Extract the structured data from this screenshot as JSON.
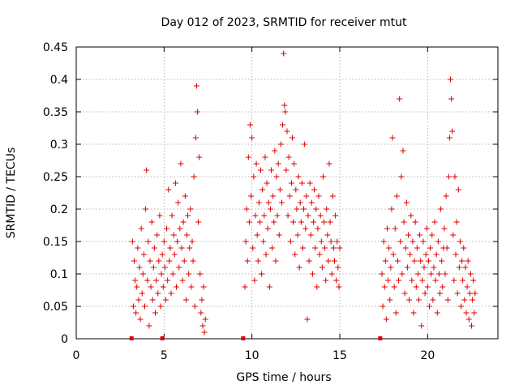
{
  "chart_data": {
    "type": "scatter",
    "title": "Day 012 of 2023, SRMTID for receiver mtut",
    "xlabel": "GPS time / hours",
    "ylabel": "SRMTID / TECUs",
    "xlim": [
      0,
      24
    ],
    "ylim": [
      0,
      0.45
    ],
    "xticks": [
      0,
      5,
      10,
      15,
      20
    ],
    "xtick_labels": [
      "0",
      "5",
      "10",
      "15",
      "20"
    ],
    "yticks": [
      0,
      0.05,
      0.1,
      0.15,
      0.2,
      0.25,
      0.3,
      0.35,
      0.4,
      0.45
    ],
    "ytick_labels": [
      "0",
      "0.05",
      "0.1",
      "0.15",
      "0.2",
      "0.25",
      "0.3",
      "0.35",
      "0.4",
      "0.45"
    ],
    "grid": true,
    "marker": "plus",
    "color": "#dd0000",
    "data_gaps_at_zero": [
      3.15,
      4.9,
      9.5,
      17.3
    ],
    "series": [
      {
        "name": "SRMTID",
        "points": [
          [
            3.2,
            0.15
          ],
          [
            3.25,
            0.05
          ],
          [
            3.3,
            0.12
          ],
          [
            3.35,
            0.09
          ],
          [
            3.4,
            0.04
          ],
          [
            3.45,
            0.08
          ],
          [
            3.5,
            0.14
          ],
          [
            3.55,
            0.06
          ],
          [
            3.6,
            0.11
          ],
          [
            3.65,
            0.03
          ],
          [
            3.7,
            0.17
          ],
          [
            3.75,
            0.07
          ],
          [
            3.8,
            0.1
          ],
          [
            3.85,
            0.13
          ],
          [
            3.9,
            0.05
          ],
          [
            3.95,
            0.2
          ],
          [
            4.0,
            0.26
          ],
          [
            4.05,
            0.09
          ],
          [
            4.1,
            0.15
          ],
          [
            4.15,
            0.02
          ],
          [
            4.2,
            0.12
          ],
          [
            4.25,
            0.08
          ],
          [
            4.3,
            0.18
          ],
          [
            4.35,
            0.06
          ],
          [
            4.4,
            0.11
          ],
          [
            4.45,
            0.14
          ],
          [
            4.5,
            0.04
          ],
          [
            4.55,
            0.09
          ],
          [
            4.6,
            0.16
          ],
          [
            4.65,
            0.07
          ],
          [
            4.7,
            0.12
          ],
          [
            4.75,
            0.19
          ],
          [
            4.8,
            0.05
          ],
          [
            4.85,
            0.1
          ],
          [
            4.9,
            0.13
          ],
          [
            4.95,
            0.08
          ],
          [
            5.0,
            0.15
          ],
          [
            5.05,
            0.11
          ],
          [
            5.1,
            0.06
          ],
          [
            5.15,
            0.17
          ],
          [
            5.2,
            0.09
          ],
          [
            5.25,
            0.23
          ],
          [
            5.3,
            0.12
          ],
          [
            5.35,
            0.14
          ],
          [
            5.4,
            0.07
          ],
          [
            5.45,
            0.19
          ],
          [
            5.5,
            0.1
          ],
          [
            5.55,
            0.16
          ],
          [
            5.6,
            0.13
          ],
          [
            5.65,
            0.24
          ],
          [
            5.7,
            0.08
          ],
          [
            5.75,
            0.15
          ],
          [
            5.8,
            0.21
          ],
          [
            5.85,
            0.11
          ],
          [
            5.9,
            0.17
          ],
          [
            5.95,
            0.27
          ],
          [
            6.0,
            0.14
          ],
          [
            6.05,
            0.09
          ],
          [
            6.1,
            0.18
          ],
          [
            6.15,
            0.12
          ],
          [
            6.2,
            0.22
          ],
          [
            6.25,
            0.06
          ],
          [
            6.3,
            0.16
          ],
          [
            6.35,
            0.19
          ],
          [
            6.4,
            0.1
          ],
          [
            6.45,
            0.14
          ],
          [
            6.5,
            0.2
          ],
          [
            6.55,
            0.08
          ],
          [
            6.6,
            0.15
          ],
          [
            6.65,
            0.12
          ],
          [
            6.7,
            0.25
          ],
          [
            6.75,
            0.05
          ],
          [
            6.8,
            0.31
          ],
          [
            6.85,
            0.39
          ],
          [
            6.9,
            0.35
          ],
          [
            6.95,
            0.18
          ],
          [
            7.0,
            0.28
          ],
          [
            7.05,
            0.1
          ],
          [
            7.1,
            0.04
          ],
          [
            7.15,
            0.06
          ],
          [
            7.2,
            0.02
          ],
          [
            7.25,
            0.08
          ],
          [
            7.3,
            0.01
          ],
          [
            7.35,
            0.03
          ],
          [
            9.6,
            0.08
          ],
          [
            9.65,
            0.15
          ],
          [
            9.7,
            0.2
          ],
          [
            9.75,
            0.12
          ],
          [
            9.8,
            0.28
          ],
          [
            9.85,
            0.18
          ],
          [
            9.9,
            0.33
          ],
          [
            9.95,
            0.22
          ],
          [
            10.0,
            0.31
          ],
          [
            10.05,
            0.14
          ],
          [
            10.1,
            0.25
          ],
          [
            10.15,
            0.09
          ],
          [
            10.2,
            0.19
          ],
          [
            10.25,
            0.27
          ],
          [
            10.3,
            0.16
          ],
          [
            10.35,
            0.12
          ],
          [
            10.4,
            0.21
          ],
          [
            10.45,
            0.18
          ],
          [
            10.5,
            0.26
          ],
          [
            10.55,
            0.1
          ],
          [
            10.6,
            0.23
          ],
          [
            10.65,
            0.15
          ],
          [
            10.7,
            0.19
          ],
          [
            10.75,
            0.28
          ],
          [
            10.8,
            0.13
          ],
          [
            10.85,
            0.24
          ],
          [
            10.9,
            0.17
          ],
          [
            10.95,
            0.21
          ],
          [
            11.0,
            0.08
          ],
          [
            11.05,
            0.2
          ],
          [
            11.1,
            0.26
          ],
          [
            11.15,
            0.14
          ],
          [
            11.2,
            0.22
          ],
          [
            11.25,
            0.18
          ],
          [
            11.3,
            0.29
          ],
          [
            11.35,
            0.12
          ],
          [
            11.4,
            0.25
          ],
          [
            11.45,
            0.19
          ],
          [
            11.5,
            0.27
          ],
          [
            11.55,
            0.16
          ],
          [
            11.6,
            0.23
          ],
          [
            11.65,
            0.3
          ],
          [
            11.7,
            0.21
          ],
          [
            11.75,
            0.33
          ],
          [
            11.8,
            0.44
          ],
          [
            11.85,
            0.36
          ],
          [
            11.9,
            0.35
          ],
          [
            11.95,
            0.26
          ],
          [
            12.0,
            0.32
          ],
          [
            12.05,
            0.19
          ],
          [
            12.1,
            0.28
          ],
          [
            12.15,
            0.22
          ],
          [
            12.2,
            0.15
          ],
          [
            12.25,
            0.24
          ],
          [
            12.3,
            0.31
          ],
          [
            12.35,
            0.18
          ],
          [
            12.4,
            0.27
          ],
          [
            12.45,
            0.13
          ],
          [
            12.5,
            0.23
          ],
          [
            12.55,
            0.2
          ],
          [
            12.6,
            0.16
          ],
          [
            12.65,
            0.25
          ],
          [
            12.7,
            0.11
          ],
          [
            12.75,
            0.21
          ],
          [
            12.8,
            0.18
          ],
          [
            12.85,
            0.24
          ],
          [
            12.9,
            0.14
          ],
          [
            12.95,
            0.2
          ],
          [
            13.0,
            0.3
          ],
          [
            13.05,
            0.17
          ],
          [
            13.1,
            0.22
          ],
          [
            13.15,
            0.03
          ],
          [
            13.2,
            0.19
          ],
          [
            13.25,
            0.12
          ],
          [
            13.3,
            0.24
          ],
          [
            13.35,
            0.16
          ],
          [
            13.4,
            0.21
          ],
          [
            13.45,
            0.1
          ],
          [
            13.5,
            0.18
          ],
          [
            13.55,
            0.23
          ],
          [
            13.6,
            0.14
          ],
          [
            13.65,
            0.2
          ],
          [
            13.7,
            0.08
          ],
          [
            13.75,
            0.17
          ],
          [
            13.8,
            0.22
          ],
          [
            13.85,
            0.13
          ],
          [
            13.9,
            0.19
          ],
          [
            13.95,
            0.15
          ],
          [
            14.0,
            0.11
          ],
          [
            14.05,
            0.25
          ],
          [
            14.1,
            0.18
          ],
          [
            14.15,
            0.14
          ],
          [
            14.2,
            0.09
          ],
          [
            14.25,
            0.2
          ],
          [
            14.3,
            0.16
          ],
          [
            14.35,
            0.12
          ],
          [
            14.4,
            0.27
          ],
          [
            14.45,
            0.18
          ],
          [
            14.5,
            0.15
          ],
          [
            14.55,
            0.1
          ],
          [
            14.6,
            0.22
          ],
          [
            14.65,
            0.14
          ],
          [
            14.7,
            0.12
          ],
          [
            14.75,
            0.19
          ],
          [
            14.8,
            0.09
          ],
          [
            14.85,
            0.15
          ],
          [
            14.9,
            0.11
          ],
          [
            14.95,
            0.08
          ],
          [
            15.0,
            0.14
          ],
          [
            17.4,
            0.1
          ],
          [
            17.45,
            0.05
          ],
          [
            17.5,
            0.15
          ],
          [
            17.55,
            0.08
          ],
          [
            17.6,
            0.12
          ],
          [
            17.65,
            0.03
          ],
          [
            17.7,
            0.17
          ],
          [
            17.75,
            0.09
          ],
          [
            17.8,
            0.14
          ],
          [
            17.85,
            0.06
          ],
          [
            17.9,
            0.11
          ],
          [
            17.95,
            0.2
          ],
          [
            18.0,
            0.31
          ],
          [
            18.05,
            0.13
          ],
          [
            18.1,
            0.08
          ],
          [
            18.15,
            0.17
          ],
          [
            18.2,
            0.04
          ],
          [
            18.25,
            0.22
          ],
          [
            18.3,
            0.12
          ],
          [
            18.35,
            0.09
          ],
          [
            18.4,
            0.37
          ],
          [
            18.45,
            0.15
          ],
          [
            18.5,
            0.25
          ],
          [
            18.55,
            0.1
          ],
          [
            18.6,
            0.29
          ],
          [
            18.65,
            0.18
          ],
          [
            18.7,
            0.07
          ],
          [
            18.75,
            0.14
          ],
          [
            18.8,
            0.21
          ],
          [
            18.85,
            0.11
          ],
          [
            18.9,
            0.16
          ],
          [
            18.95,
            0.06
          ],
          [
            19.0,
            0.13
          ],
          [
            19.05,
            0.19
          ],
          [
            19.1,
            0.09
          ],
          [
            19.15,
            0.15
          ],
          [
            19.2,
            0.04
          ],
          [
            19.25,
            0.12
          ],
          [
            19.3,
            0.18
          ],
          [
            19.35,
            0.08
          ],
          [
            19.4,
            0.14
          ],
          [
            19.45,
            0.1
          ],
          [
            19.5,
            0.06
          ],
          [
            19.55,
            0.16
          ],
          [
            19.6,
            0.12
          ],
          [
            19.65,
            0.02
          ],
          [
            19.7,
            0.09
          ],
          [
            19.75,
            0.15
          ],
          [
            19.8,
            0.11
          ],
          [
            19.85,
            0.07
          ],
          [
            19.9,
            0.13
          ],
          [
            19.95,
            0.17
          ],
          [
            20.0,
            0.08
          ],
          [
            20.05,
            0.12
          ],
          [
            20.1,
            0.05
          ],
          [
            20.15,
            0.14
          ],
          [
            20.2,
            0.1
          ],
          [
            20.25,
            0.16
          ],
          [
            20.3,
            0.06
          ],
          [
            20.35,
            0.11
          ],
          [
            20.4,
            0.18
          ],
          [
            20.45,
            0.09
          ],
          [
            20.5,
            0.13
          ],
          [
            20.55,
            0.04
          ],
          [
            20.6,
            0.15
          ],
          [
            20.65,
            0.1
          ],
          [
            20.7,
            0.07
          ],
          [
            20.75,
            0.2
          ],
          [
            20.8,
            0.12
          ],
          [
            20.85,
            0.08
          ],
          [
            20.9,
            0.14
          ],
          [
            20.95,
            0.17
          ],
          [
            21.0,
            0.1
          ],
          [
            21.05,
            0.22
          ],
          [
            21.1,
            0.14
          ],
          [
            21.15,
            0.06
          ],
          [
            21.2,
            0.25
          ],
          [
            21.25,
            0.31
          ],
          [
            21.3,
            0.4
          ],
          [
            21.35,
            0.37
          ],
          [
            21.4,
            0.32
          ],
          [
            21.45,
            0.16
          ],
          [
            21.5,
            0.09
          ],
          [
            21.55,
            0.25
          ],
          [
            21.6,
            0.13
          ],
          [
            21.65,
            0.18
          ],
          [
            21.7,
            0.07
          ],
          [
            21.75,
            0.23
          ],
          [
            21.8,
            0.11
          ],
          [
            21.85,
            0.15
          ],
          [
            21.9,
            0.05
          ],
          [
            21.95,
            0.12
          ],
          [
            22.0,
            0.09
          ],
          [
            22.05,
            0.14
          ],
          [
            22.1,
            0.06
          ],
          [
            22.15,
            0.11
          ],
          [
            22.2,
            0.04
          ],
          [
            22.25,
            0.08
          ],
          [
            22.3,
            0.12
          ],
          [
            22.35,
            0.03
          ],
          [
            22.4,
            0.07
          ],
          [
            22.45,
            0.1
          ],
          [
            22.5,
            0.02
          ],
          [
            22.55,
            0.06
          ],
          [
            22.6,
            0.09
          ],
          [
            22.65,
            0.04
          ],
          [
            22.7,
            0.07
          ]
        ]
      }
    ]
  }
}
